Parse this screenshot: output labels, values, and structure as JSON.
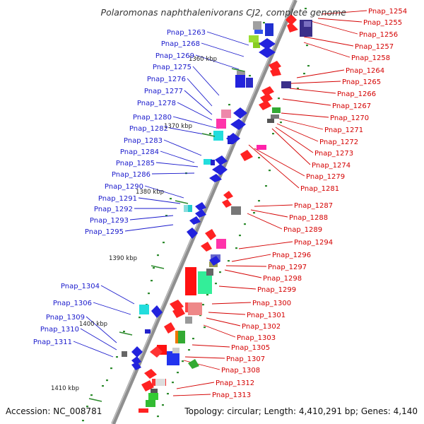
{
  "title": "Polaromonas naphthalenivorans CJ2, complete genome",
  "footer": {
    "accession": "Accession: NC_008781",
    "topology": "Topology: circular; Length: 4,410,291 bp; Genes: 4,140"
  },
  "scale_ticks": [
    "1360 kbp",
    "1370 kbp",
    "1380 kbp",
    "1390 kbp",
    "1400 kbp",
    "1410 kbp"
  ],
  "colors": {
    "left_labels": "#1a1acc",
    "right_labels": "#d40000",
    "backbone": "#8f8f8f",
    "minor_ticks": "#2e8b2e"
  },
  "left_labels": [
    "Pnap_1263",
    "Pnap_1268",
    "Pnap_1269",
    "Pnap_1275",
    "Pnap_1276",
    "Pnap_1277",
    "Pnap_1278",
    "Pnap_1280",
    "Pnap_1282",
    "Pnap_1283",
    "Pnap_1284",
    "Pnap_1285",
    "Pnap_1286",
    "Pnap_1290",
    "Pnap_1291",
    "Pnap_1292",
    "Pnap_1293",
    "Pnap_1295",
    "Pnap_1304",
    "Pnap_1306",
    "Pnap_1309",
    "Pnap_1310",
    "Pnap_1311"
  ],
  "right_labels": [
    "Pnap_1254",
    "Pnap_1255",
    "Pnap_1256",
    "Pnap_1257",
    "Pnap_1258",
    "Pnap_1264",
    "Pnap_1265",
    "Pnap_1266",
    "Pnap_1267",
    "Pnap_1270",
    "Pnap_1271",
    "Pnap_1272",
    "Pnap_1273",
    "Pnap_1274",
    "Pnap_1279",
    "Pnap_1281",
    "Pnap_1287",
    "Pnap_1288",
    "Pnap_1289",
    "Pnap_1294",
    "Pnap_1296",
    "Pnap_1297",
    "Pnap_1298",
    "Pnap_1299",
    "Pnap_1300",
    "Pnap_1301",
    "Pnap_1302",
    "Pnap_1303",
    "Pnap_1305",
    "Pnap_1307",
    "Pnap_1308",
    "Pnap_1312",
    "Pnap_1313"
  ]
}
